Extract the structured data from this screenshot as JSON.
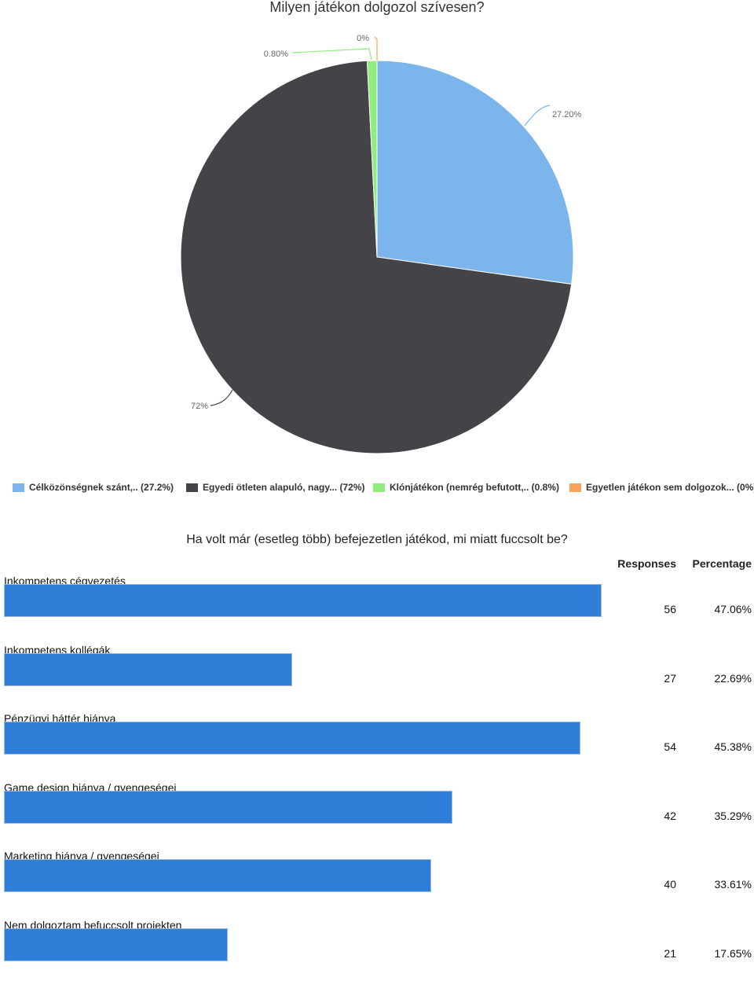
{
  "chart_data": [
    {
      "type": "pie",
      "title": "Milyen játékon dolgozol szívesen?",
      "slices": [
        {
          "legend": "Célközönségnek szánt,.. (27.2%)",
          "label": "27.20%",
          "value": 27.2,
          "color": "#7cb5ec"
        },
        {
          "legend": "Egyedi ötleten alapuló, nagy... (72%)",
          "label": "72%",
          "value": 72.0,
          "color": "#434348"
        },
        {
          "legend": "Klónjátékon (nemrég befutott,.. (0.8%)",
          "label": "0.80%",
          "value": 0.8,
          "color": "#90ed7d"
        },
        {
          "legend": "Egyetlen játékon sem dolgozok... (0%)",
          "label": "0%",
          "value": 0.0,
          "color": "#f7a35c"
        }
      ]
    },
    {
      "type": "bar",
      "title": "Ha volt már (esetleg több) befejezetlen játékod, mi miatt fuccsolt be?",
      "column_headers": {
        "responses": "Responses",
        "percentage": "Percentage"
      },
      "categories": [
        "Inkompetens cégvezetés",
        "Inkompetens kollégák",
        "Pénzügyi háttér hiánya",
        "Game design hiánya / gyengeségei",
        "Marketing hiánya / gyengeségei",
        "Nem dolgoztam befuccsolt projekten"
      ],
      "values": [
        56,
        27,
        54,
        42,
        40,
        21
      ],
      "percentages": [
        "47.06%",
        "22.69%",
        "45.38%",
        "35.29%",
        "33.61%",
        "17.65%"
      ],
      "color": "#2f7ed8"
    }
  ]
}
